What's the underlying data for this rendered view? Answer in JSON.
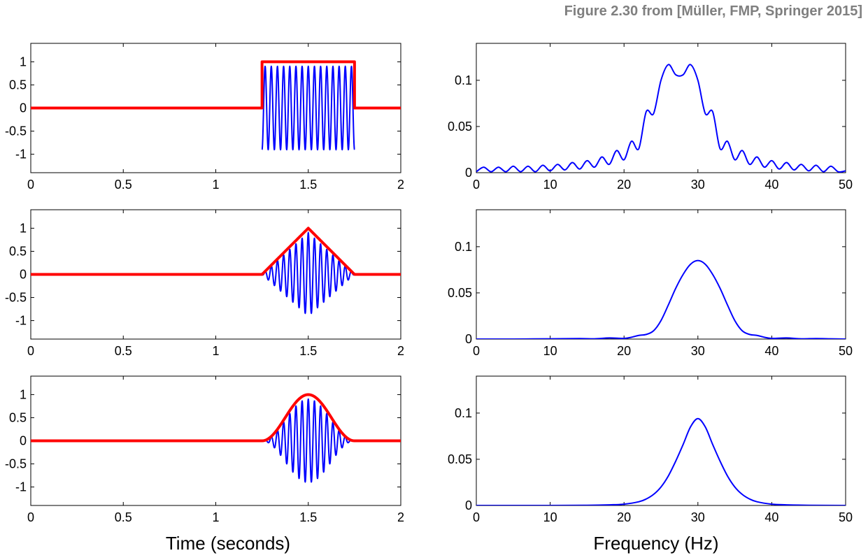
{
  "caption": "Figure 2.30 from [Müller, FMP, Springer 2015]",
  "colors": {
    "signal": "#0000ff",
    "window": "#ff0000",
    "axes": "#000000",
    "background": "#ffffff",
    "caption": "#7f7f7f"
  },
  "xlabel_time": "Time (seconds)",
  "xlabel_freq": "Frequency (Hz)",
  "chart_data": [
    {
      "id": "time-rect",
      "type": "line",
      "title": "",
      "xlabel": "",
      "ylabel": "",
      "xlim": [
        0,
        2
      ],
      "ylim": [
        -1.4,
        1.4
      ],
      "xticks": [
        0,
        0.5,
        1,
        1.5,
        2
      ],
      "xticklabels": [
        "0",
        "0.5",
        "1",
        "1.5",
        "2"
      ],
      "yticks": [
        1,
        0.5,
        0,
        -0.5,
        -1
      ],
      "yticklabels": [
        "1",
        "0.5",
        "0",
        "-0.5",
        "-1"
      ],
      "grid": false,
      "legend": "none",
      "series": [
        {
          "role": "signal",
          "color": "#0000ff",
          "kind": "windowed-sine",
          "freq_hz": 30,
          "window": "rectangular",
          "window_start": 1.25,
          "window_end": 1.75,
          "peak": 1,
          "amplitude_scale": 0.9,
          "phase": -1.5708
        },
        {
          "role": "window",
          "color": "#ff0000",
          "kind": "window",
          "window": "rectangular",
          "window_start": 1.25,
          "window_end": 1.75,
          "peak": 1
        }
      ]
    },
    {
      "id": "time-tri",
      "type": "line",
      "title": "",
      "xlabel": "",
      "ylabel": "",
      "xlim": [
        0,
        2
      ],
      "ylim": [
        -1.4,
        1.4
      ],
      "xticks": [
        0,
        0.5,
        1,
        1.5,
        2
      ],
      "xticklabels": [
        "0",
        "0.5",
        "1",
        "1.5",
        "2"
      ],
      "yticks": [
        1,
        0.5,
        0,
        -0.5,
        -1
      ],
      "yticklabels": [
        "1",
        "0.5",
        "0",
        "-0.5",
        "-1"
      ],
      "grid": false,
      "legend": "none",
      "series": [
        {
          "role": "signal",
          "color": "#0000ff",
          "kind": "windowed-sine",
          "freq_hz": 30,
          "window": "triangular",
          "window_start": 1.25,
          "window_end": 1.75,
          "peak": 1,
          "amplitude_scale": 0.9,
          "phase": -1.5708
        },
        {
          "role": "window",
          "color": "#ff0000",
          "kind": "window",
          "window": "triangular",
          "window_start": 1.25,
          "window_end": 1.75,
          "peak": 1
        }
      ]
    },
    {
      "id": "time-hann",
      "type": "line",
      "title": "",
      "xlabel": "",
      "ylabel": "",
      "xlim": [
        0,
        2
      ],
      "ylim": [
        -1.4,
        1.4
      ],
      "xticks": [
        0,
        0.5,
        1,
        1.5,
        2
      ],
      "xticklabels": [
        "0",
        "0.5",
        "1",
        "1.5",
        "2"
      ],
      "yticks": [
        1,
        0.5,
        0,
        -0.5,
        -1
      ],
      "yticklabels": [
        "1",
        "0.5",
        "0",
        "-0.5",
        "-1"
      ],
      "grid": false,
      "legend": "none",
      "series": [
        {
          "role": "signal",
          "color": "#0000ff",
          "kind": "windowed-sine",
          "freq_hz": 30,
          "window": "hann",
          "window_start": 1.25,
          "window_end": 1.75,
          "peak": 1,
          "amplitude_scale": 0.9,
          "phase": -1.5708
        },
        {
          "role": "window",
          "color": "#ff0000",
          "kind": "window",
          "window": "hann",
          "window_start": 1.25,
          "window_end": 1.75,
          "peak": 1
        }
      ]
    },
    {
      "id": "freq-rect",
      "type": "line",
      "title": "",
      "xlabel": "",
      "ylabel": "",
      "xlim": [
        0,
        50
      ],
      "ylim": [
        0,
        0.14
      ],
      "xticks": [
        0,
        10,
        20,
        30,
        40,
        50
      ],
      "xticklabels": [
        "0",
        "10",
        "20",
        "30",
        "40",
        "50"
      ],
      "yticks": [
        0.1,
        0.05,
        0
      ],
      "yticklabels": [
        "0.1",
        "0.05",
        "0"
      ],
      "grid": false,
      "legend": "none",
      "series": [
        {
          "role": "spectrum",
          "color": "#0000ff",
          "x": [
            0,
            1,
            2,
            3,
            4,
            5,
            6,
            7,
            8,
            9,
            10,
            11,
            12,
            13,
            14,
            15,
            16,
            17,
            18,
            19,
            20,
            21,
            22,
            23,
            24,
            25,
            26,
            27,
            28,
            29,
            30,
            31,
            32,
            33,
            34,
            35,
            36,
            37,
            38,
            39,
            40,
            41,
            42,
            43,
            44,
            45,
            46,
            47,
            48,
            49,
            50
          ],
          "y": [
            0.001,
            0.006,
            0.001,
            0.006,
            0.001,
            0.007,
            0.001,
            0.007,
            0.001,
            0.008,
            0.002,
            0.009,
            0.003,
            0.011,
            0.004,
            0.013,
            0.006,
            0.017,
            0.009,
            0.024,
            0.014,
            0.034,
            0.026,
            0.066,
            0.064,
            0.1,
            0.117,
            0.106,
            0.106,
            0.117,
            0.1,
            0.064,
            0.066,
            0.026,
            0.034,
            0.014,
            0.024,
            0.009,
            0.017,
            0.006,
            0.013,
            0.004,
            0.011,
            0.003,
            0.009,
            0.002,
            0.008,
            0.001,
            0.007,
            0.001,
            0.002
          ]
        }
      ]
    },
    {
      "id": "freq-tri",
      "type": "line",
      "title": "",
      "xlabel": "",
      "ylabel": "",
      "xlim": [
        0,
        50
      ],
      "ylim": [
        0,
        0.14
      ],
      "xticks": [
        0,
        10,
        20,
        30,
        40,
        50
      ],
      "xticklabels": [
        "0",
        "10",
        "20",
        "30",
        "40",
        "50"
      ],
      "yticks": [
        0.1,
        0.05,
        0
      ],
      "yticklabels": [
        "0.1",
        "0.05",
        "0"
      ],
      "grid": false,
      "legend": "none",
      "series": [
        {
          "role": "spectrum",
          "color": "#0000ff",
          "x": [
            0,
            5,
            10,
            14,
            16,
            18,
            20,
            21,
            22,
            23,
            24,
            25,
            26,
            27,
            28,
            29,
            30,
            31,
            32,
            33,
            34,
            35,
            36,
            37,
            38,
            39,
            40,
            42,
            44,
            46,
            48,
            50
          ],
          "y": [
            0,
            0,
            0.0003,
            0.0006,
            0.0003,
            0.0012,
            0.0008,
            0.002,
            0.004,
            0.005,
            0.009,
            0.02,
            0.037,
            0.055,
            0.07,
            0.081,
            0.085,
            0.081,
            0.07,
            0.055,
            0.037,
            0.02,
            0.009,
            0.005,
            0.004,
            0.002,
            0.0008,
            0.0012,
            0.0003,
            0.0006,
            0.0003,
            0
          ]
        }
      ]
    },
    {
      "id": "freq-hann",
      "type": "line",
      "title": "",
      "xlabel": "",
      "ylabel": "",
      "xlim": [
        0,
        50
      ],
      "ylim": [
        0,
        0.14
      ],
      "xticks": [
        0,
        10,
        20,
        30,
        40,
        50
      ],
      "xticklabels": [
        "0",
        "10",
        "20",
        "30",
        "40",
        "50"
      ],
      "yticks": [
        0.1,
        0.05,
        0
      ],
      "yticklabels": [
        "0.1",
        "0.05",
        "0"
      ],
      "grid": false,
      "legend": "none",
      "series": [
        {
          "role": "spectrum",
          "color": "#0000ff",
          "x": [
            0,
            10,
            15,
            18,
            20,
            22,
            23,
            24,
            25,
            26,
            27,
            28,
            29,
            30,
            31,
            32,
            33,
            34,
            35,
            36,
            37,
            38,
            40,
            42,
            45,
            50
          ],
          "y": [
            0,
            0,
            0.0002,
            0.0007,
            0.0014,
            0.004,
            0.007,
            0.012,
            0.02,
            0.032,
            0.048,
            0.066,
            0.085,
            0.094,
            0.085,
            0.066,
            0.048,
            0.032,
            0.02,
            0.012,
            0.007,
            0.004,
            0.0014,
            0.0007,
            0.0002,
            0
          ]
        }
      ]
    }
  ]
}
